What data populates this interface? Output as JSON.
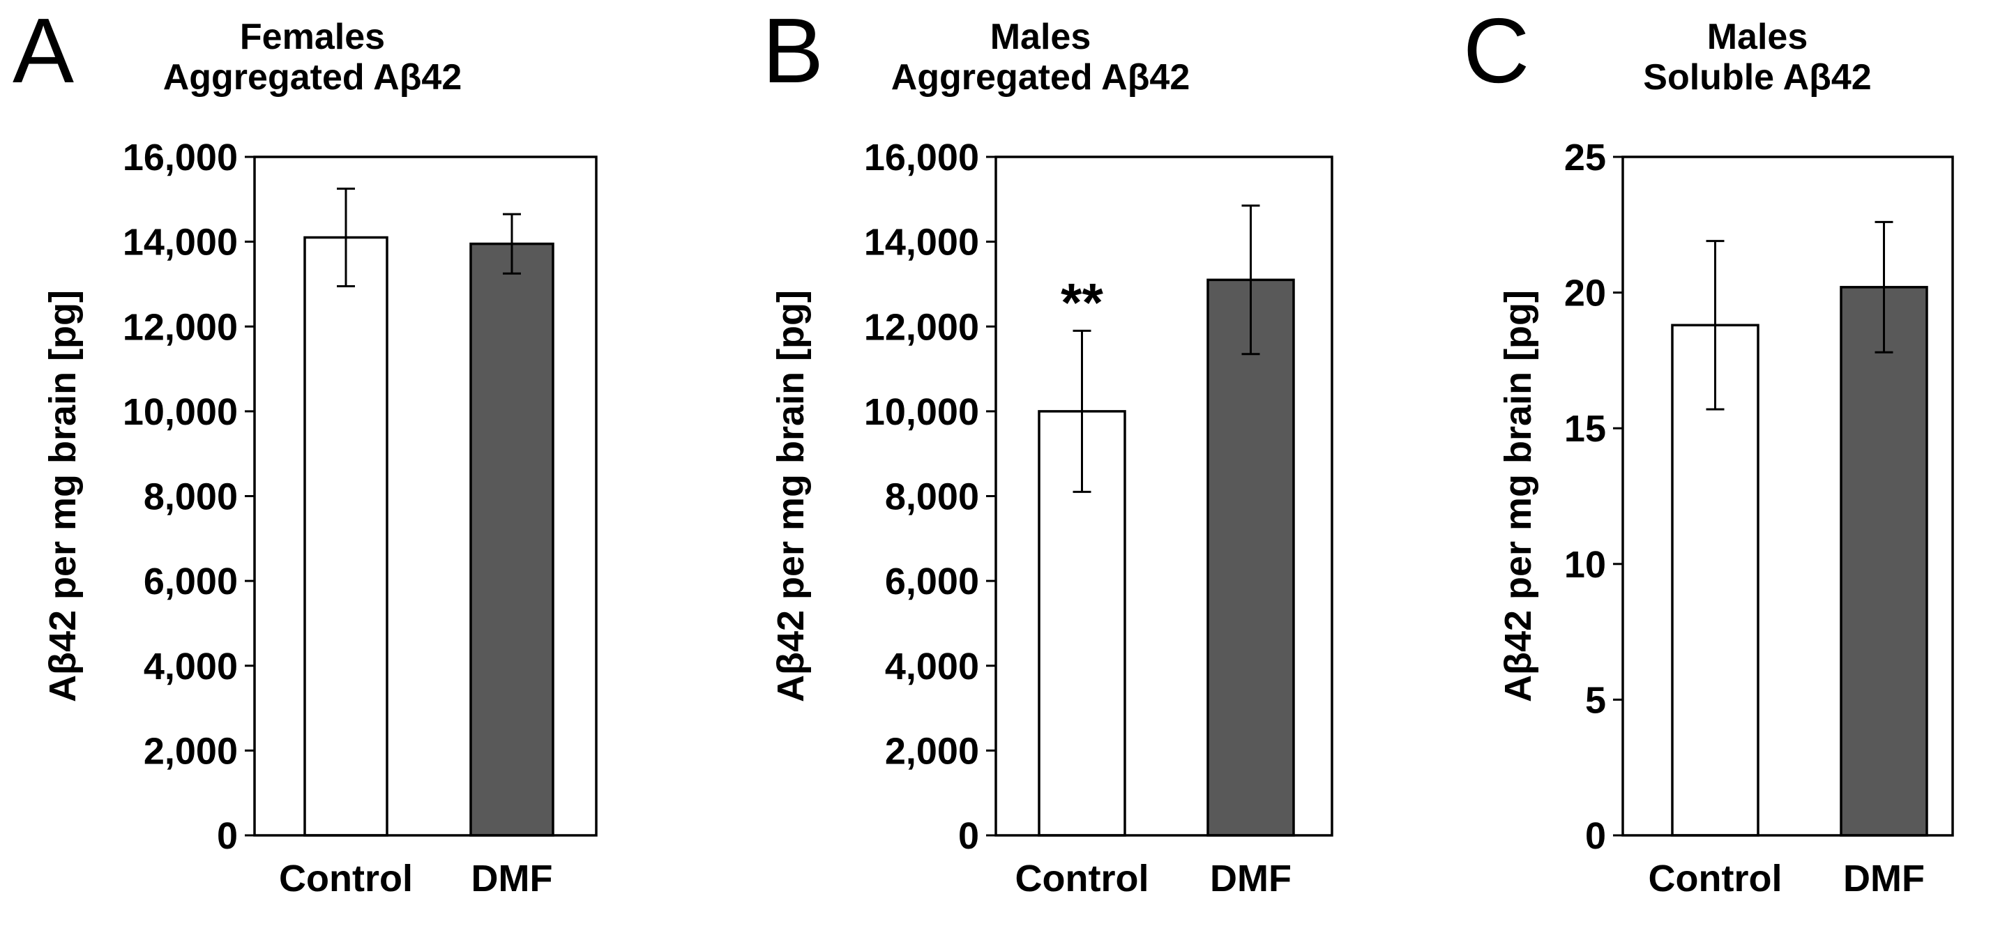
{
  "chart_data": [
    {
      "type": "bar",
      "panel_label": "A",
      "title_lines": [
        "Females",
        "Aggregated Aβ42"
      ],
      "ylabel": "Aβ42 per mg brain [pg]",
      "xlabel": "",
      "ylim": [
        0,
        16000
      ],
      "yticks": [
        0,
        2000,
        4000,
        6000,
        8000,
        10000,
        12000,
        14000,
        16000
      ],
      "ytick_labels": [
        "0",
        "2,000",
        "4,000",
        "6,000",
        "8,000",
        "10,000",
        "12,000",
        "14,000",
        "16,000"
      ],
      "categories": [
        "Control",
        "DMF"
      ],
      "values": [
        14100,
        13950
      ],
      "errors": [
        1150,
        700
      ],
      "bar_colors": [
        "#ffffff",
        "#595959"
      ],
      "annotations": [
        "",
        ""
      ]
    },
    {
      "type": "bar",
      "panel_label": "B",
      "title_lines": [
        "Males",
        "Aggregated Aβ42"
      ],
      "ylabel": "Aβ42 per mg brain [pg]",
      "xlabel": "",
      "ylim": [
        0,
        16000
      ],
      "yticks": [
        0,
        2000,
        4000,
        6000,
        8000,
        10000,
        12000,
        14000,
        16000
      ],
      "ytick_labels": [
        "0",
        "2,000",
        "4,000",
        "6,000",
        "8,000",
        "10,000",
        "12,000",
        "14,000",
        "16,000"
      ],
      "categories": [
        "Control",
        "DMF"
      ],
      "values": [
        10000,
        13100
      ],
      "errors": [
        1900,
        1750
      ],
      "bar_colors": [
        "#ffffff",
        "#595959"
      ],
      "annotations": [
        "**",
        ""
      ]
    },
    {
      "type": "bar",
      "panel_label": "C",
      "title_lines": [
        "Males",
        "Soluble Aβ42"
      ],
      "ylabel": "Aβ42 per mg brain [pg]",
      "xlabel": "",
      "ylim": [
        0,
        25
      ],
      "yticks": [
        0,
        5,
        10,
        15,
        20,
        25
      ],
      "ytick_labels": [
        "0",
        "5",
        "10",
        "15",
        "20",
        "25"
      ],
      "categories": [
        "Control",
        "DMF"
      ],
      "values": [
        18.8,
        20.2
      ],
      "errors": [
        3.1,
        2.4
      ],
      "bar_colors": [
        "#ffffff",
        "#595959"
      ],
      "annotations": [
        "",
        ""
      ]
    }
  ]
}
